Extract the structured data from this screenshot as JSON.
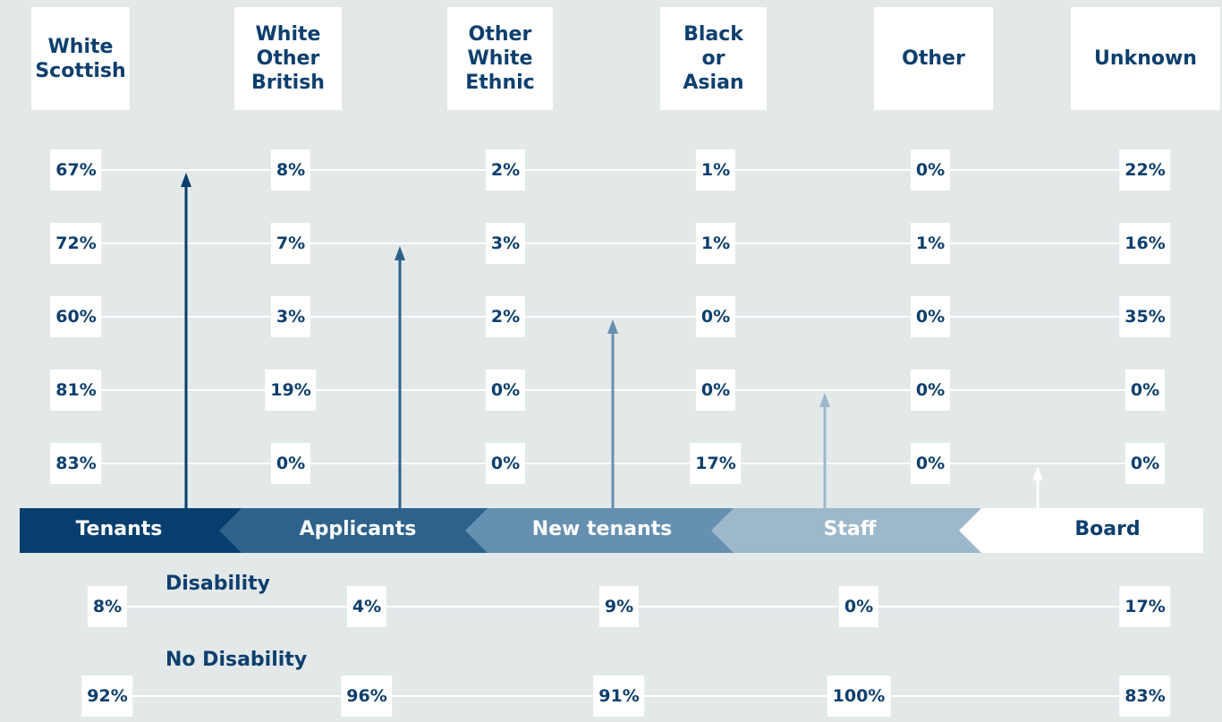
{
  "ethnicity": {
    "headers": [
      "White\nScottish",
      "White\nOther\nBritish",
      "Other\nWhite\nEthnic",
      "Black\nor\nAsian",
      "Other",
      "Unknown"
    ],
    "groups": [
      "Tenants",
      "Applicants",
      "New tenants",
      "Staff",
      "Board"
    ],
    "rows": [
      [
        "67%",
        "8%",
        "2%",
        "1%",
        "0%",
        "22%"
      ],
      [
        "72%",
        "7%",
        "3%",
        "1%",
        "1%",
        "16%"
      ],
      [
        "60%",
        "3%",
        "2%",
        "0%",
        "0%",
        "35%"
      ],
      [
        "81%",
        "19%",
        "0%",
        "0%",
        "0%",
        "0%"
      ],
      [
        "83%",
        "0%",
        "0%",
        "17%",
        "0%",
        "0%"
      ]
    ]
  },
  "disability": {
    "labels": [
      "Disability",
      "No Disability"
    ],
    "rows": [
      [
        "8%",
        "4%",
        "9%",
        "0%",
        "17%"
      ],
      [
        "92%",
        "96%",
        "91%",
        "100%",
        "83%"
      ]
    ]
  }
}
